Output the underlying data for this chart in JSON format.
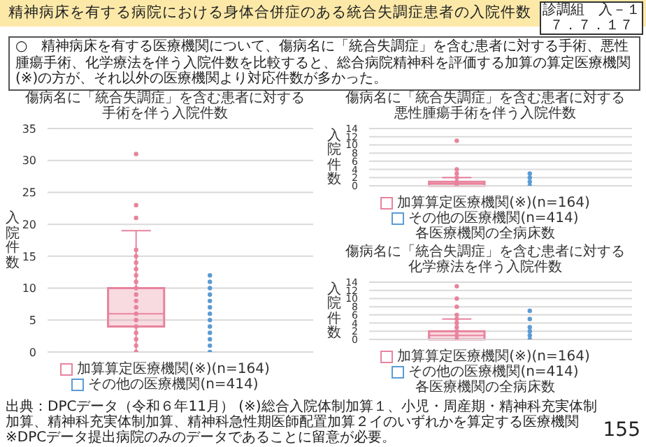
{
  "chart_data": [
    {
      "type": "box",
      "title": "傷病名に「統合失調症」を含む患者に対する手術を伴う入院件数",
      "ylabel": "入院件数",
      "categories": [
        null,
        null
      ],
      "ylim": [
        0,
        35
      ],
      "yticks": [
        0,
        5,
        10,
        15,
        20,
        25,
        30,
        35
      ],
      "grid": "y",
      "legend": "bottom",
      "series": [
        {
          "name": "加算算定医療機関(※)(n=164)",
          "color": "#e8839d",
          "boxes": [
            {
              "low": 0,
              "q1": 4,
              "median": 6,
              "q3": 10,
              "high": 19,
              "outliers": [
                0,
                1,
                2,
                3,
                4,
                5,
                6,
                7,
                8,
                9,
                10,
                11,
                12,
                13,
                14,
                15,
                16,
                21,
                23,
                31
              ]
            },
            null
          ]
        },
        {
          "name": "その他の医療機関(n=414)",
          "color": "#5b9bd5",
          "boxes": [
            null,
            {
              "low": 0,
              "q1": 0,
              "median": 0,
              "q3": 0,
              "high": 0,
              "outliers": [
                0,
                1,
                2,
                3,
                4,
                5,
                6,
                7,
                8,
                9,
                10,
                11,
                12
              ]
            }
          ]
        }
      ],
      "annotations": [
        "精神病床を有する病院における身体合併症のある統合失調症患者の入院件数",
        "○　精神病床を有する医療機関について、傷病名に「統合失調症」を含む患者に対する手術、悪性腫瘍手術、化学療法を伴う入院件数を比較すると、総合病院精神科を評価する加算の算定医療機関(※)の方が、それ以外の医療機関より対応件数が多かった。",
        "診調組　入－１７．７．１７",
        "出典：DPCデータ（令和６年11月）",
        "(※)総合入院体制加算１、小児・周産期・精神科充実体制加算、精神科充実体制加算、精神科急性期医師配置加算２イのいずれかを算定する医療機関",
        "※DPCデータ提出病院のみのデータであることに留意が必要。",
        "155"
      ]
    },
    {
      "type": "box",
      "title": "傷病名に「統合失調症」を含む患者に対する悪性腫瘍手術を伴う入院件数",
      "xlabel": "各医療機関の全病床数",
      "ylabel": "入院件数",
      "categories": [
        null,
        null
      ],
      "ylim": [
        0,
        14
      ],
      "yticks": [
        0,
        2,
        4,
        6,
        8,
        10,
        12,
        14
      ],
      "grid": "y",
      "legend": "bottom",
      "series": [
        {
          "name": "加算算定医療機関(※)(n=164)",
          "color": "#e8839d",
          "boxes": [
            {
              "low": 0,
              "q1": 0,
              "median": 0.5,
              "q3": 1,
              "high": 2,
              "outliers": [
                0,
                1,
                2,
                3,
                4,
                11
              ]
            },
            null
          ]
        },
        {
          "name": "その他の医療機関(n=414)",
          "color": "#5b9bd5",
          "boxes": [
            null,
            {
              "low": 0,
              "q1": 0,
              "median": 0,
              "q3": 0,
              "high": 0,
              "outliers": [
                0,
                1,
                2,
                3
              ]
            }
          ]
        }
      ]
    },
    {
      "type": "box",
      "title": "傷病名に「統合失調症」を含む患者に対する化学療法を伴う入院件数",
      "xlabel": "各医療機関の全病床数",
      "ylabel": "入院件数",
      "categories": [
        null,
        null
      ],
      "ylim": [
        0,
        14
      ],
      "yticks": [
        0,
        2,
        4,
        6,
        8,
        10,
        12,
        14
      ],
      "grid": "y",
      "legend": "bottom",
      "series": [
        {
          "name": "加算算定医療機関(※)(n=164)",
          "color": "#e8839d",
          "boxes": [
            {
              "low": 0,
              "q1": 0,
              "median": 1,
              "q3": 2,
              "high": 5,
              "outliers": [
                0,
                1,
                2,
                3,
                4,
                5,
                6,
                8,
                10,
                13
              ]
            },
            null
          ]
        },
        {
          "name": "その他の医療機関(n=414)",
          "color": "#5b9bd5",
          "boxes": [
            null,
            {
              "low": 0,
              "q1": 0,
              "median": 0,
              "q3": 0,
              "high": 0,
              "outliers": [
                0,
                1,
                2,
                3,
                5,
                7
              ]
            }
          ]
        }
      ]
    }
  ]
}
